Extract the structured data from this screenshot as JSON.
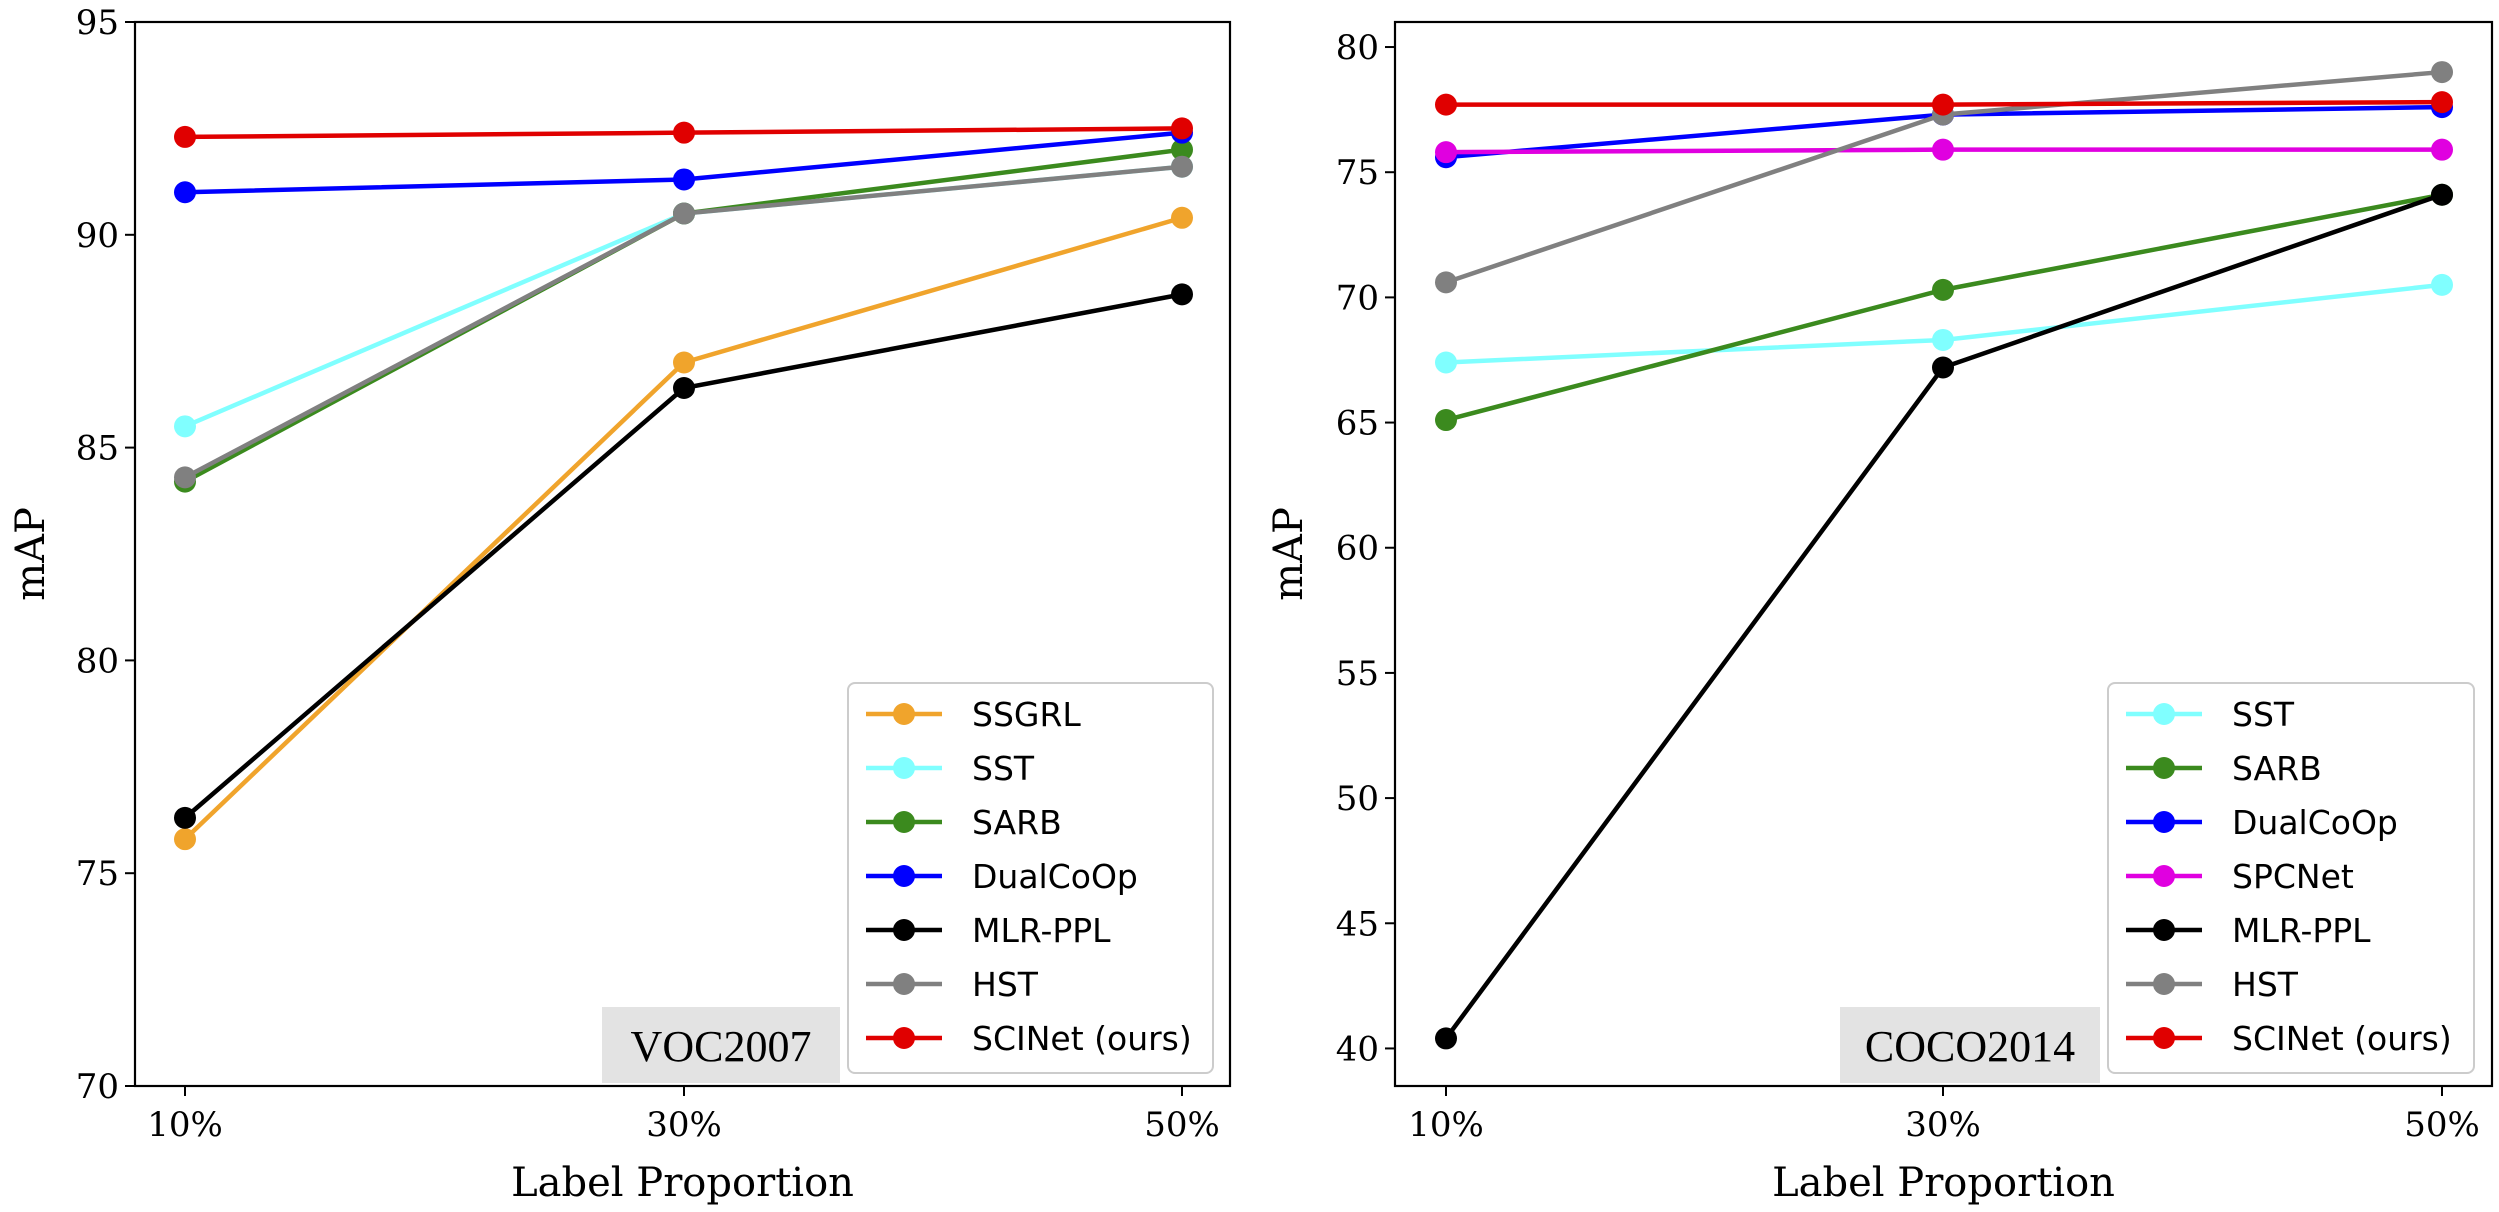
{
  "chart_data": [
    {
      "type": "line",
      "title": "",
      "dataset_label": "VOC2007",
      "xlabel": "Label Proportion",
      "ylabel": "mAP",
      "categories": [
        "10%",
        "30%",
        "50%"
      ],
      "ylim": [
        70,
        95
      ],
      "yticks": [
        70,
        75,
        80,
        85,
        90,
        95
      ],
      "grid": false,
      "legend_position": "bottom-right",
      "series": [
        {
          "name": "SSGRL",
          "color": "#f0a42c",
          "values": [
            75.8,
            87.0,
            90.4
          ]
        },
        {
          "name": "SST",
          "color": "#80ffff",
          "values": [
            85.5,
            90.5,
            91.6
          ]
        },
        {
          "name": "SARB",
          "color": "#3b8a1e",
          "values": [
            84.2,
            90.5,
            92.0
          ]
        },
        {
          "name": "DualCoOp",
          "color": "#0000ff",
          "values": [
            91.0,
            91.3,
            92.4
          ]
        },
        {
          "name": "MLR-PPL",
          "color": "#000000",
          "values": [
            76.3,
            86.4,
            88.6
          ]
        },
        {
          "name": "HST",
          "color": "#808080",
          "values": [
            84.3,
            90.5,
            91.6
          ]
        },
        {
          "name": "SCINet (ours)",
          "color": "#e00000",
          "values": [
            92.3,
            92.4,
            92.5
          ]
        }
      ]
    },
    {
      "type": "line",
      "title": "",
      "dataset_label": "COCO2014",
      "xlabel": "Label Proportion",
      "ylabel": "mAP",
      "categories": [
        "10%",
        "30%",
        "50%"
      ],
      "ylim": [
        38.5,
        81
      ],
      "yticks": [
        40,
        45,
        50,
        55,
        60,
        65,
        70,
        75,
        80
      ],
      "grid": false,
      "legend_position": "bottom-right",
      "series": [
        {
          "name": "SST",
          "color": "#80ffff",
          "values": [
            67.4,
            68.3,
            70.5
          ]
        },
        {
          "name": "SARB",
          "color": "#3b8a1e",
          "values": [
            65.1,
            70.3,
            74.1
          ]
        },
        {
          "name": "DualCoOp",
          "color": "#0000ff",
          "values": [
            75.6,
            77.3,
            77.6
          ]
        },
        {
          "name": "SPCNet",
          "color": "#e000e0",
          "values": [
            75.8,
            75.9,
            75.9
          ]
        },
        {
          "name": "MLR-PPL",
          "color": "#000000",
          "values": [
            40.4,
            67.2,
            74.1
          ]
        },
        {
          "name": "HST",
          "color": "#808080",
          "values": [
            70.6,
            77.3,
            79.0
          ]
        },
        {
          "name": "SCINet (ours)",
          "color": "#e00000",
          "values": [
            77.7,
            77.7,
            77.8
          ]
        }
      ]
    }
  ]
}
